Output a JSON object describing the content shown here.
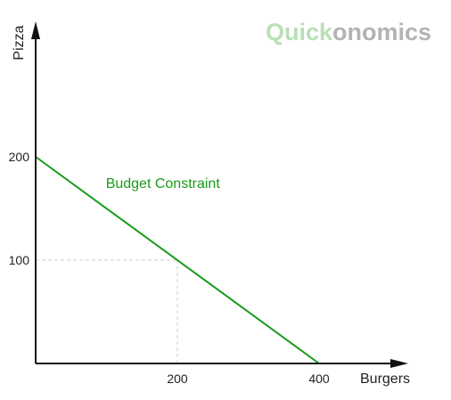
{
  "logo": {
    "part1": "Quick",
    "part2": "onomics",
    "color_part1": "#b9e0b5",
    "color_part2": "#b3b3b3"
  },
  "chart_data": {
    "type": "line",
    "xlabel": "Burgers",
    "ylabel": "Pizza",
    "xlim": [
      0,
      420
    ],
    "ylim": [
      0,
      260
    ],
    "x_ticks": [
      200,
      400
    ],
    "y_ticks": [
      100,
      200
    ],
    "x_tick_labels": [
      "200",
      "400"
    ],
    "y_tick_labels": [
      "100",
      "200"
    ],
    "grid": false,
    "series": [
      {
        "name": "Budget Constraint",
        "color": "#1a9a1a",
        "x": [
          0,
          400
        ],
        "y": [
          200,
          0
        ]
      }
    ],
    "guide_lines": [
      {
        "x": 200,
        "y": 100,
        "color": "#cccccc",
        "style": "dashed"
      }
    ],
    "annotations": [
      {
        "text": "Budget Constraint",
        "x": 60,
        "y": 170
      }
    ]
  }
}
